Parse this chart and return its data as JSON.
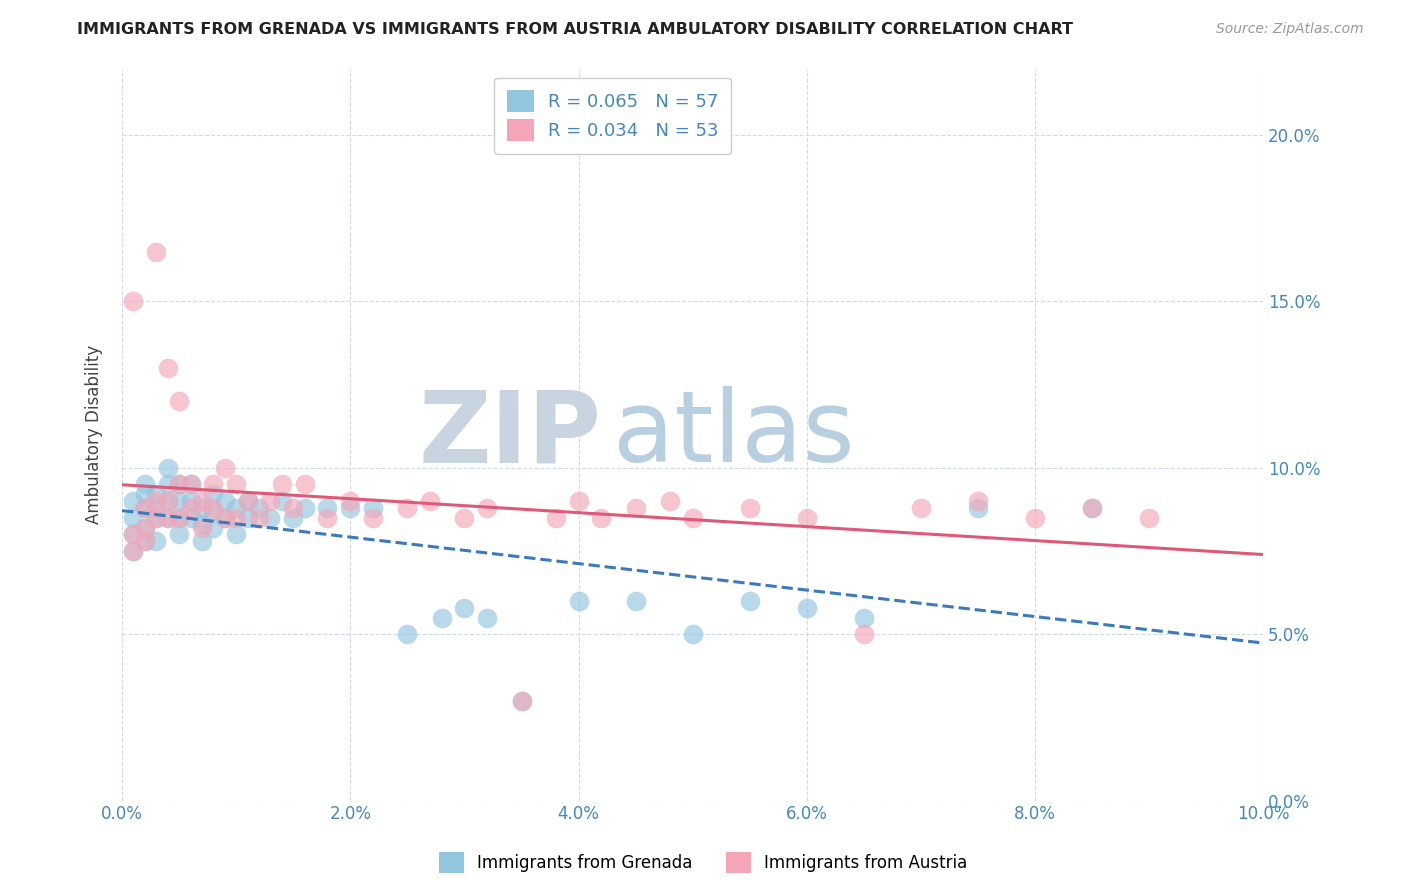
{
  "title": "IMMIGRANTS FROM GRENADA VS IMMIGRANTS FROM AUSTRIA AMBULATORY DISABILITY CORRELATION CHART",
  "source": "Source: ZipAtlas.com",
  "ylabel": "Ambulatory Disability",
  "x_tick_labels": [
    "0.0%",
    "2.0%",
    "4.0%",
    "6.0%",
    "8.0%",
    "10.0%"
  ],
  "y_tick_labels": [
    "0.0%",
    "5.0%",
    "10.0%",
    "15.0%",
    "20.0%"
  ],
  "xlim": [
    0.0,
    0.1
  ],
  "ylim": [
    0.0,
    0.22
  ],
  "grenada_R": 0.065,
  "grenada_N": 57,
  "austria_R": 0.034,
  "austria_N": 53,
  "grenada_color": "#92c5de",
  "austria_color": "#f4a6b8",
  "grenada_line_color": "#3a7abf",
  "austria_line_color": "#e05878",
  "legend_label_grenada": "Immigrants from Grenada",
  "legend_label_austria": "Immigrants from Austria",
  "background_color": "#ffffff",
  "grid_color": "#c8d8e8",
  "title_color": "#222222",
  "axis_label_color": "#444444",
  "tick_color": "#4488bb",
  "watermark_zip_color": "#c8d4e0",
  "watermark_atlas_color": "#b8cfe0",
  "grenada_x": [
    0.001,
    0.001,
    0.001,
    0.001,
    0.002,
    0.002,
    0.002,
    0.002,
    0.002,
    0.003,
    0.003,
    0.003,
    0.003,
    0.004,
    0.004,
    0.004,
    0.004,
    0.005,
    0.005,
    0.005,
    0.005,
    0.006,
    0.006,
    0.006,
    0.007,
    0.007,
    0.007,
    0.008,
    0.008,
    0.008,
    0.009,
    0.009,
    0.01,
    0.01,
    0.011,
    0.011,
    0.012,
    0.013,
    0.014,
    0.015,
    0.016,
    0.018,
    0.02,
    0.022,
    0.025,
    0.028,
    0.03,
    0.032,
    0.035,
    0.04,
    0.045,
    0.05,
    0.055,
    0.06,
    0.065,
    0.075,
    0.085
  ],
  "grenada_y": [
    0.08,
    0.075,
    0.09,
    0.085,
    0.078,
    0.082,
    0.088,
    0.092,
    0.095,
    0.085,
    0.088,
    0.092,
    0.078,
    0.085,
    0.09,
    0.095,
    0.1,
    0.08,
    0.085,
    0.09,
    0.095,
    0.085,
    0.09,
    0.095,
    0.078,
    0.083,
    0.088,
    0.082,
    0.087,
    0.092,
    0.085,
    0.09,
    0.08,
    0.088,
    0.085,
    0.09,
    0.088,
    0.085,
    0.09,
    0.085,
    0.088,
    0.088,
    0.088,
    0.088,
    0.05,
    0.055,
    0.058,
    0.055,
    0.03,
    0.06,
    0.06,
    0.05,
    0.06,
    0.058,
    0.055,
    0.088,
    0.088
  ],
  "austria_x": [
    0.001,
    0.001,
    0.001,
    0.002,
    0.002,
    0.002,
    0.003,
    0.003,
    0.003,
    0.004,
    0.004,
    0.004,
    0.005,
    0.005,
    0.005,
    0.006,
    0.006,
    0.007,
    0.007,
    0.008,
    0.008,
    0.009,
    0.009,
    0.01,
    0.01,
    0.011,
    0.012,
    0.013,
    0.014,
    0.015,
    0.016,
    0.018,
    0.02,
    0.022,
    0.025,
    0.027,
    0.03,
    0.032,
    0.035,
    0.038,
    0.04,
    0.042,
    0.045,
    0.048,
    0.05,
    0.055,
    0.06,
    0.065,
    0.07,
    0.075,
    0.08,
    0.085,
    0.09
  ],
  "austria_y": [
    0.075,
    0.08,
    0.15,
    0.078,
    0.082,
    0.088,
    0.085,
    0.09,
    0.165,
    0.085,
    0.09,
    0.13,
    0.085,
    0.12,
    0.095,
    0.088,
    0.095,
    0.082,
    0.09,
    0.088,
    0.095,
    0.085,
    0.1,
    0.085,
    0.095,
    0.09,
    0.085,
    0.09,
    0.095,
    0.088,
    0.095,
    0.085,
    0.09,
    0.085,
    0.088,
    0.09,
    0.085,
    0.088,
    0.03,
    0.085,
    0.09,
    0.085,
    0.088,
    0.09,
    0.085,
    0.088,
    0.085,
    0.05,
    0.088,
    0.09,
    0.085,
    0.088,
    0.085
  ]
}
